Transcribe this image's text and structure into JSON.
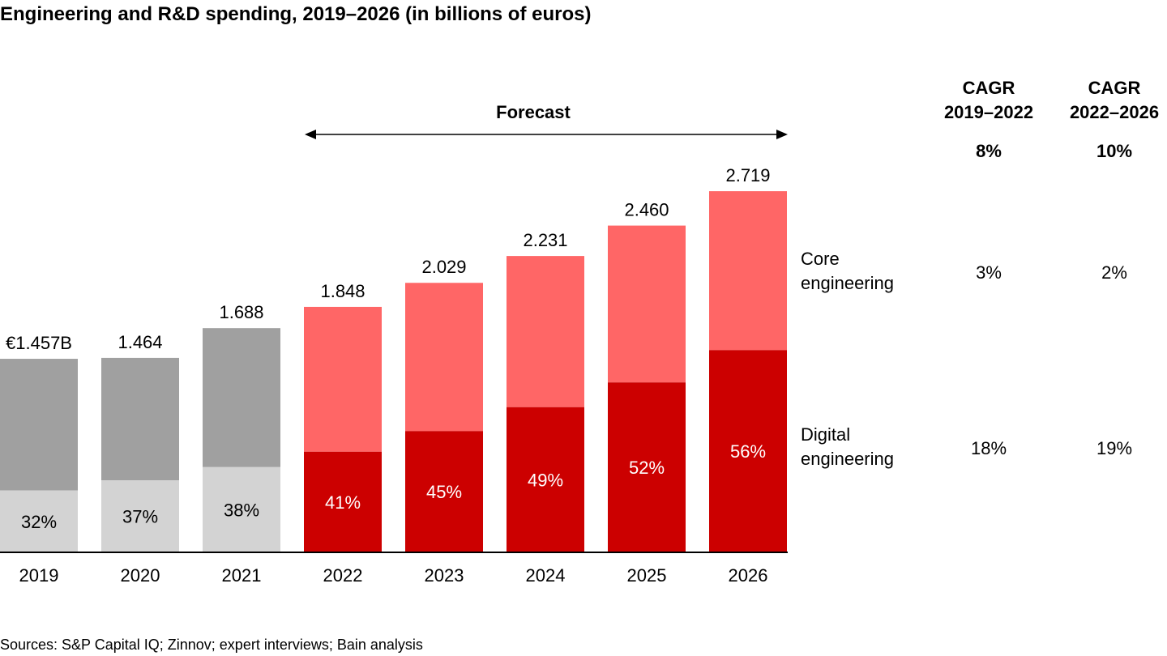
{
  "title": "Engineering and R&D spending, 2019–2026 (in billions of euros)",
  "source": "Sources: S&P Capital IQ; Zinnov; expert interviews; Bain analysis",
  "forecast_label": "Forecast",
  "segments": {
    "core": "Core engineering",
    "digital": "Digital engineering"
  },
  "cagr": {
    "headers": [
      "CAGR 2019–2022",
      "CAGR 2022–2026"
    ],
    "total": [
      "8%",
      "10%"
    ],
    "core": [
      "3%",
      "2%"
    ],
    "digital": [
      "18%",
      "19%"
    ]
  },
  "colors": {
    "historical_total": "#a0a0a0",
    "historical_digital": "#d3d3d3",
    "core": "#ff6666",
    "digital": "#cc0000"
  },
  "chart_data": {
    "type": "bar",
    "stacked": true,
    "categories": [
      "2019",
      "2020",
      "2021",
      "2022",
      "2023",
      "2024",
      "2025",
      "2026"
    ],
    "totals": [
      1.457,
      1.464,
      1.688,
      1.848,
      2.029,
      2.231,
      2.46,
      2.719
    ],
    "total_labels": [
      "€1.457B",
      "1.464",
      "1.688",
      "1.848",
      "2.029",
      "2.231",
      "2.460",
      "2.719"
    ],
    "digital_share": [
      0.32,
      0.37,
      0.38,
      0.41,
      0.45,
      0.49,
      0.52,
      0.56
    ],
    "share_labels": [
      "32%",
      "37%",
      "38%",
      "41%",
      "45%",
      "49%",
      "52%",
      "56%"
    ],
    "forecast_from": "2022",
    "ylim": [
      0,
      2.8
    ]
  }
}
